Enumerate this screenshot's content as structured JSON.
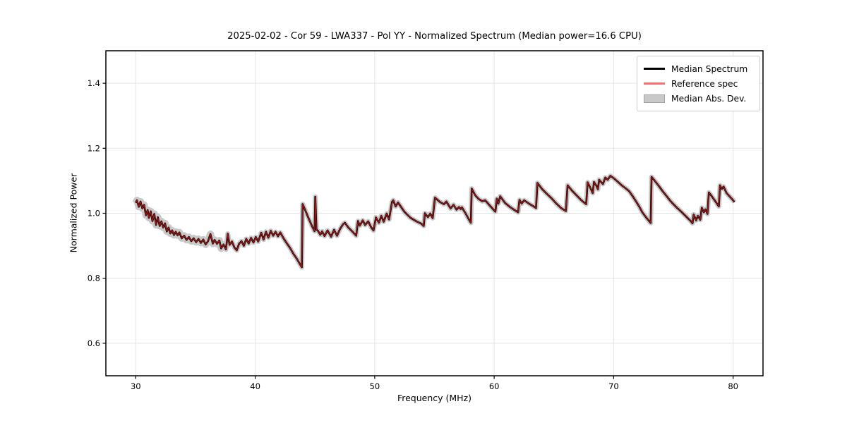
{
  "figure": {
    "title": "2025-02-02 - Cor 59 - LWA337 - Pol YY - Normalized Spectrum (Median power=16.6 CPU)",
    "background": "#ffffff"
  },
  "chart_data": {
    "type": "line",
    "title": "2025-02-02 - Cor 59 - LWA337 - Pol YY - Normalized Spectrum (Median power=16.6 CPU)",
    "xlabel": "Frequency (MHz)",
    "ylabel": "Normalized Power",
    "xlim": [
      27.5,
      82.5
    ],
    "ylim": [
      0.5,
      1.5
    ],
    "xticks": [
      30,
      40,
      50,
      60,
      70,
      80
    ],
    "yticks": [
      0.6,
      0.8,
      1.0,
      1.2,
      1.4
    ],
    "grid": true,
    "legend": {
      "position": "upper right",
      "entries": [
        {
          "label": "Median Spectrum",
          "type": "line",
          "color": "#000000"
        },
        {
          "label": "Reference spec",
          "type": "line",
          "color": "#f96f6f"
        },
        {
          "label": "Median Abs. Dev.",
          "type": "patch",
          "fill": "#c9c9c9",
          "edge": "#a3a3a3"
        }
      ]
    },
    "series_notes": "Reference spec (red) lies almost exactly on top of the Median Spectrum (black); Median Abs. Dev. is a narrow gray band (~±0.01) around the median line.",
    "mad_band": [
      {
        "f_max": 37.2,
        "halfwidth": 0.011
      },
      {
        "f_max": 82.5,
        "halfwidth": 0.0075
      }
    ],
    "spectrum_points": [
      [
        30.0,
        1.032
      ],
      [
        30.1,
        1.04
      ],
      [
        30.25,
        1.02
      ],
      [
        30.4,
        1.036
      ],
      [
        30.55,
        1.015
      ],
      [
        30.7,
        1.026
      ],
      [
        30.85,
        0.994
      ],
      [
        31.0,
        1.01
      ],
      [
        31.1,
        0.986
      ],
      [
        31.25,
        1.006
      ],
      [
        31.4,
        0.976
      ],
      [
        31.55,
        0.998
      ],
      [
        31.7,
        0.964
      ],
      [
        31.85,
        0.988
      ],
      [
        32.0,
        0.961
      ],
      [
        32.15,
        0.975
      ],
      [
        32.3,
        0.956
      ],
      [
        32.45,
        0.969
      ],
      [
        32.6,
        0.944
      ],
      [
        32.75,
        0.956
      ],
      [
        32.9,
        0.938
      ],
      [
        33.05,
        0.947
      ],
      [
        33.2,
        0.933
      ],
      [
        33.35,
        0.943
      ],
      [
        33.5,
        0.932
      ],
      [
        33.65,
        0.941
      ],
      [
        33.85,
        0.923
      ],
      [
        34.05,
        0.931
      ],
      [
        34.25,
        0.918
      ],
      [
        34.45,
        0.927
      ],
      [
        34.65,
        0.914
      ],
      [
        34.85,
        0.923
      ],
      [
        35.05,
        0.911
      ],
      [
        35.25,
        0.921
      ],
      [
        35.45,
        0.909
      ],
      [
        35.65,
        0.919
      ],
      [
        35.85,
        0.904
      ],
      [
        36.05,
        0.914
      ],
      [
        36.25,
        0.936
      ],
      [
        36.45,
        0.907
      ],
      [
        36.6,
        0.918
      ],
      [
        36.8,
        0.906
      ],
      [
        37.0,
        0.916
      ],
      [
        37.15,
        0.892
      ],
      [
        37.35,
        0.904
      ],
      [
        37.55,
        0.889
      ],
      [
        37.7,
        0.937
      ],
      [
        37.85,
        0.903
      ],
      [
        38.05,
        0.913
      ],
      [
        38.25,
        0.895
      ],
      [
        38.45,
        0.886
      ],
      [
        38.65,
        0.906
      ],
      [
        38.85,
        0.914
      ],
      [
        39.05,
        0.9
      ],
      [
        39.25,
        0.921
      ],
      [
        39.45,
        0.907
      ],
      [
        39.65,
        0.924
      ],
      [
        39.85,
        0.91
      ],
      [
        40.05,
        0.927
      ],
      [
        40.25,
        0.913
      ],
      [
        40.5,
        0.94
      ],
      [
        40.7,
        0.919
      ],
      [
        40.9,
        0.943
      ],
      [
        41.1,
        0.925
      ],
      [
        41.3,
        0.946
      ],
      [
        41.5,
        0.931
      ],
      [
        41.7,
        0.943
      ],
      [
        41.9,
        0.929
      ],
      [
        42.1,
        0.941
      ],
      [
        42.35,
        0.924
      ],
      [
        42.6,
        0.91
      ],
      [
        42.9,
        0.894
      ],
      [
        43.2,
        0.875
      ],
      [
        43.5,
        0.859
      ],
      [
        43.75,
        0.843
      ],
      [
        43.9,
        0.834
      ],
      [
        43.97,
        1.028
      ],
      [
        44.2,
        1.008
      ],
      [
        44.4,
        0.99
      ],
      [
        44.6,
        0.973
      ],
      [
        44.8,
        0.957
      ],
      [
        44.97,
        0.945
      ],
      [
        45.03,
        1.051
      ],
      [
        45.12,
        0.95
      ],
      [
        45.25,
        0.946
      ],
      [
        45.45,
        0.934
      ],
      [
        45.6,
        0.944
      ],
      [
        45.8,
        0.93
      ],
      [
        46.05,
        0.947
      ],
      [
        46.35,
        0.928
      ],
      [
        46.6,
        0.949
      ],
      [
        46.85,
        0.931
      ],
      [
        47.1,
        0.952
      ],
      [
        47.35,
        0.966
      ],
      [
        47.5,
        0.971
      ],
      [
        47.8,
        0.956
      ],
      [
        48.1,
        0.945
      ],
      [
        48.45,
        0.931
      ],
      [
        48.6,
        0.976
      ],
      [
        48.75,
        0.962
      ],
      [
        49.0,
        0.978
      ],
      [
        49.2,
        0.964
      ],
      [
        49.45,
        0.975
      ],
      [
        49.7,
        0.957
      ],
      [
        49.9,
        0.947
      ],
      [
        50.1,
        0.987
      ],
      [
        50.35,
        0.971
      ],
      [
        50.55,
        0.992
      ],
      [
        50.75,
        0.974
      ],
      [
        51.0,
        0.999
      ],
      [
        51.2,
        0.981
      ],
      [
        51.45,
        1.035
      ],
      [
        51.55,
        1.04
      ],
      [
        51.75,
        1.021
      ],
      [
        51.95,
        1.033
      ],
      [
        52.5,
        1.004
      ],
      [
        53.0,
        0.986
      ],
      [
        53.5,
        0.975
      ],
      [
        53.9,
        0.968
      ],
      [
        54.1,
        0.961
      ],
      [
        54.2,
        1.0
      ],
      [
        54.45,
        0.988
      ],
      [
        54.65,
        0.999
      ],
      [
        54.85,
        0.985
      ],
      [
        55.05,
        1.048
      ],
      [
        55.45,
        1.035
      ],
      [
        55.8,
        1.028
      ],
      [
        56.0,
        1.036
      ],
      [
        56.35,
        1.015
      ],
      [
        56.6,
        1.026
      ],
      [
        56.85,
        1.011
      ],
      [
        57.05,
        1.019
      ],
      [
        57.2,
        1.013
      ],
      [
        57.3,
        1.018
      ],
      [
        57.6,
        1.0
      ],
      [
        57.9,
        0.98
      ],
      [
        58.05,
        0.971
      ],
      [
        58.12,
        1.076
      ],
      [
        58.4,
        1.056
      ],
      [
        58.7,
        1.044
      ],
      [
        59.0,
        1.037
      ],
      [
        59.25,
        1.04
      ],
      [
        59.6,
        1.025
      ],
      [
        59.9,
        1.013
      ],
      [
        60.1,
        1.005
      ],
      [
        60.22,
        1.045
      ],
      [
        60.35,
        1.03
      ],
      [
        60.5,
        1.052
      ],
      [
        60.9,
        1.032
      ],
      [
        61.3,
        1.02
      ],
      [
        61.7,
        1.01
      ],
      [
        62.0,
        1.003
      ],
      [
        62.12,
        1.041
      ],
      [
        62.3,
        1.03
      ],
      [
        62.5,
        1.04
      ],
      [
        62.9,
        1.03
      ],
      [
        63.3,
        1.021
      ],
      [
        63.5,
        1.016
      ],
      [
        63.62,
        1.093
      ],
      [
        64.0,
        1.075
      ],
      [
        64.4,
        1.06
      ],
      [
        64.8,
        1.046
      ],
      [
        65.2,
        1.03
      ],
      [
        65.6,
        1.016
      ],
      [
        66.0,
        1.007
      ],
      [
        66.15,
        1.086
      ],
      [
        66.5,
        1.07
      ],
      [
        66.9,
        1.055
      ],
      [
        67.3,
        1.04
      ],
      [
        67.7,
        1.028
      ],
      [
        67.82,
        1.095
      ],
      [
        68.05,
        1.078
      ],
      [
        68.25,
        1.062
      ],
      [
        68.35,
        1.096
      ],
      [
        68.55,
        1.085
      ],
      [
        68.68,
        1.074
      ],
      [
        68.78,
        1.103
      ],
      [
        68.95,
        1.096
      ],
      [
        69.1,
        1.09
      ],
      [
        69.3,
        1.11
      ],
      [
        69.5,
        1.103
      ],
      [
        69.72,
        1.115
      ],
      [
        70.0,
        1.108
      ],
      [
        70.35,
        1.097
      ],
      [
        70.7,
        1.085
      ],
      [
        71.0,
        1.077
      ],
      [
        71.3,
        1.068
      ],
      [
        71.6,
        1.052
      ],
      [
        71.9,
        1.035
      ],
      [
        72.15,
        1.02
      ],
      [
        72.4,
        1.003
      ],
      [
        72.7,
        0.988
      ],
      [
        72.9,
        0.979
      ],
      [
        73.1,
        0.97
      ],
      [
        73.17,
        1.112
      ],
      [
        73.5,
        1.097
      ],
      [
        73.8,
        1.083
      ],
      [
        74.1,
        1.068
      ],
      [
        74.4,
        1.054
      ],
      [
        74.7,
        1.04
      ],
      [
        75.0,
        1.028
      ],
      [
        75.3,
        1.017
      ],
      [
        75.6,
        1.007
      ],
      [
        75.9,
        0.996
      ],
      [
        76.2,
        0.985
      ],
      [
        76.45,
        0.976
      ],
      [
        76.6,
        0.969
      ],
      [
        76.7,
        0.996
      ],
      [
        76.9,
        0.978
      ],
      [
        77.05,
        0.992
      ],
      [
        77.25,
        0.98
      ],
      [
        77.38,
        1.017
      ],
      [
        77.55,
        1.003
      ],
      [
        77.68,
        1.012
      ],
      [
        77.85,
        0.998
      ],
      [
        77.97,
        1.064
      ],
      [
        78.2,
        1.053
      ],
      [
        78.55,
        1.035
      ],
      [
        78.8,
        1.021
      ],
      [
        78.9,
        1.086
      ],
      [
        79.05,
        1.075
      ],
      [
        79.2,
        1.082
      ],
      [
        79.45,
        1.062
      ],
      [
        79.7,
        1.052
      ],
      [
        80.0,
        1.04
      ],
      [
        80.1,
        1.034
      ]
    ]
  },
  "colors": {
    "median_line": "#000000",
    "reference_line_plot": "#a81414",
    "reference_line_legend": "#f96f6f",
    "mad_band": "#c9c9c9",
    "grid": "#e5e5e5",
    "spine": "#000000",
    "tick": "#000000"
  }
}
